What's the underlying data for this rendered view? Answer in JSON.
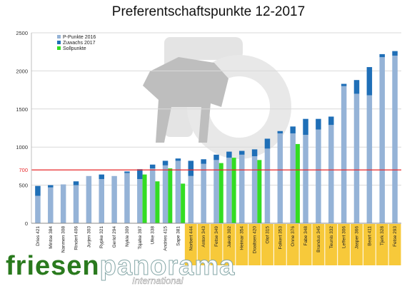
{
  "chart_data": {
    "type": "bar",
    "title": "Preferentschaftspunkte 12-2017",
    "ylim": [
      0,
      2500
    ],
    "yticks": [
      0,
      500,
      1000,
      1500,
      2000,
      2500
    ],
    "reference_line": {
      "value": 700,
      "label": "700",
      "color": "#e8262a"
    },
    "grid": true,
    "legend": {
      "position": "top-left"
    },
    "series": [
      {
        "name": "P-Punkte 2016",
        "color": "#95b3d7"
      },
      {
        "name": "Zuwachs 2017",
        "color": "#1f6fb7"
      },
      {
        "name": "Sollpunkte",
        "color": "#33dd22"
      }
    ],
    "categories": [
      "Dries 421",
      "Mintse 384",
      "Nanmen 308",
      "Rindert 406",
      "Jurjen 303",
      "Rypke 321",
      "Gerlof 294",
      "Nykle 309",
      "Tsjalke 397",
      "Ulke 338",
      "Andries 415",
      "Sape 381",
      "Norbert 444",
      "Anton 343",
      "Fetse 349",
      "Jakob 302",
      "Heimar 354",
      "Doaitsen 420",
      "Olof 315",
      "Folkert 353",
      "Onne 376",
      "Fabe 348",
      "Brandus 345",
      "Teunis 332",
      "Leffert 306",
      "Jasper 366",
      "Beart 411",
      "Tjerk 328",
      "Fetse 293"
    ],
    "highlighted_categories": [
      "Norbert 444",
      "Anton 343",
      "Fetse 349",
      "Jakob 302",
      "Heimar 354",
      "Doaitsen 420",
      "Olof 315",
      "Folkert 353",
      "Onne 376",
      "Fabe 348",
      "Brandus 345",
      "Teunis 332",
      "Leffert 306",
      "Jasper 366",
      "Beart 411",
      "Tjerk 328",
      "Fetse 293"
    ],
    "p_punkte_2016": [
      360,
      470,
      510,
      500,
      620,
      580,
      620,
      660,
      580,
      720,
      760,
      820,
      620,
      780,
      830,
      860,
      900,
      880,
      980,
      1180,
      1180,
      1160,
      1230,
      1290,
      1800,
      1700,
      1680,
      2180,
      2200
    ],
    "zuwachs_2017": [
      130,
      30,
      0,
      50,
      0,
      60,
      0,
      20,
      130,
      50,
      60,
      30,
      200,
      60,
      70,
      80,
      50,
      90,
      130,
      30,
      90,
      210,
      140,
      110,
      30,
      180,
      370,
      40,
      60
    ],
    "sollpunkte": [
      0,
      0,
      0,
      0,
      0,
      0,
      0,
      0,
      640,
      550,
      720,
      520,
      0,
      0,
      790,
      860,
      0,
      830,
      0,
      0,
      1040,
      0,
      0,
      0,
      0,
      0,
      0,
      0,
      0
    ]
  },
  "logo": {
    "word_a": "friesen",
    "word_b": "panorama",
    "sub": "International"
  }
}
